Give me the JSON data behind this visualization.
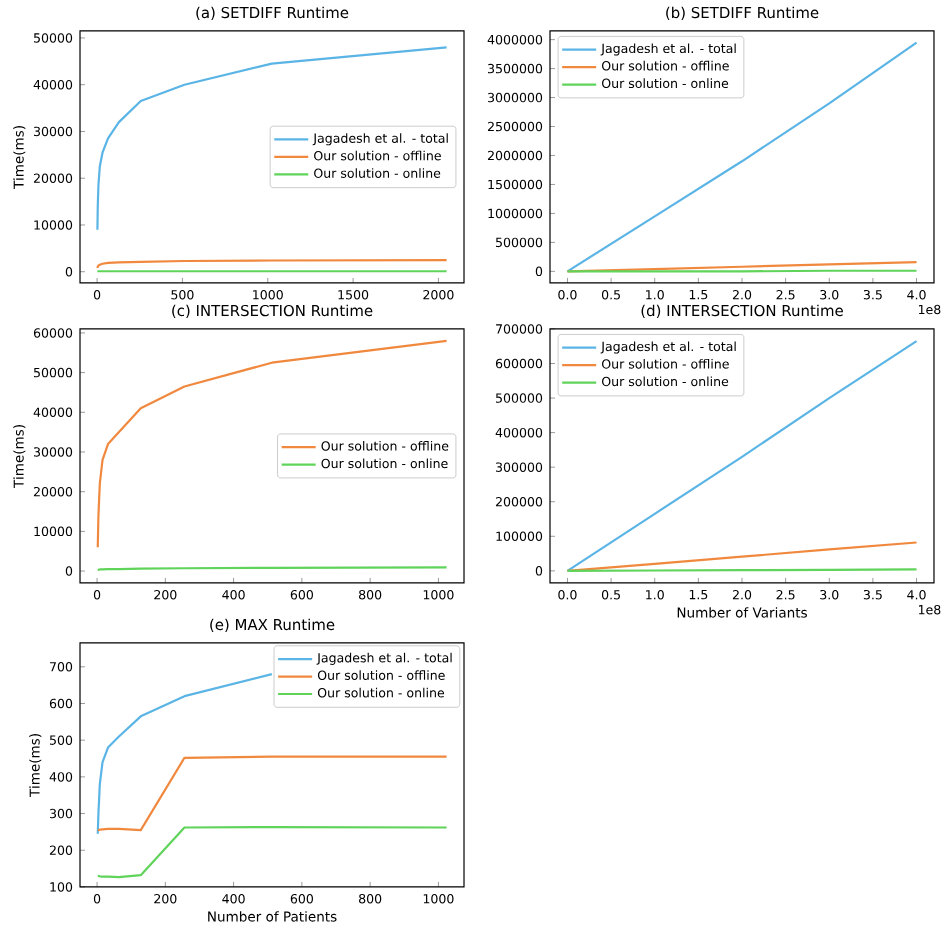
{
  "chart_data": [
    {
      "type": "line",
      "title": "(a) SETDIFF Runtime",
      "ylabel": "Time(ms)",
      "legend": "right",
      "xlim": [
        -100,
        2150
      ],
      "ylim": [
        -2400,
        51500
      ],
      "xticks": [
        0,
        500,
        1000,
        1500,
        2000
      ],
      "yticks": [
        0,
        10000,
        20000,
        30000,
        40000,
        50000
      ],
      "x": [
        2,
        4,
        8,
        16,
        32,
        64,
        128,
        256,
        512,
        1024,
        2048
      ],
      "series": [
        {
          "name": "Jagadesh et al. - total",
          "color": "#5ab4e5",
          "values": [
            9000,
            14000,
            18500,
            22500,
            25500,
            28500,
            32000,
            36500,
            40000,
            44500,
            48000
          ]
        },
        {
          "name": "Our solution - offline",
          "color": "#f0883e",
          "values": [
            800,
            1100,
            1300,
            1500,
            1700,
            1900,
            2000,
            2100,
            2300,
            2400,
            2500
          ]
        },
        {
          "name": "Our solution - online",
          "color": "#5fd35a",
          "values": [
            100,
            100,
            100,
            100,
            100,
            100,
            100,
            100,
            100,
            100,
            100
          ]
        }
      ]
    },
    {
      "type": "line",
      "title": "(b) SETDIFF Runtime",
      "legend": "top left",
      "annotations": [
        "1e8"
      ],
      "xlim": [
        -0.2,
        4.2
      ],
      "ylim": [
        -200000,
        4150000
      ],
      "xticks": [
        {
          "value": 0,
          "label": "0.0"
        },
        0.5,
        {
          "value": 1,
          "label": "1.0"
        },
        1.5,
        {
          "value": 2,
          "label": "2.0"
        },
        2.5,
        {
          "value": 3,
          "label": "3.0"
        },
        3.5,
        {
          "value": 4,
          "label": "4.0"
        }
      ],
      "yticks": [
        0,
        500000,
        1000000,
        1500000,
        2000000,
        2500000,
        3000000,
        3500000,
        4000000
      ],
      "x": [
        0,
        1,
        2,
        3,
        4
      ],
      "series": [
        {
          "name": "Jagadesh et al. - total",
          "color": "#5ab4e5",
          "values": [
            0,
            950000,
            1900000,
            2900000,
            3950000
          ]
        },
        {
          "name": "Our solution - offline",
          "color": "#f0883e",
          "values": [
            0,
            40000,
            80000,
            120000,
            160000
          ]
        },
        {
          "name": "Our solution - online",
          "color": "#5fd35a",
          "values": [
            0,
            0,
            0,
            10000,
            10000
          ]
        }
      ]
    },
    {
      "type": "line",
      "title": "(c) INTERSECTION Runtime",
      "ylabel": "Time(ms)",
      "legend": "right",
      "xlim": [
        -50,
        1075
      ],
      "ylim": [
        -3000,
        61000
      ],
      "xticks": [
        0,
        200,
        400,
        600,
        800,
        1000
      ],
      "yticks": [
        0,
        10000,
        20000,
        30000,
        40000,
        50000,
        60000
      ],
      "x": [
        2,
        4,
        8,
        16,
        32,
        64,
        128,
        256,
        512,
        1024
      ],
      "series": [
        {
          "name": "Our solution - offline",
          "color": "#f0883e",
          "values": [
            6000,
            14000,
            22000,
            28000,
            32000,
            35000,
            41000,
            46500,
            52500,
            58000
          ]
        },
        {
          "name": "Our solution - online",
          "color": "#5fd35a",
          "values": [
            300,
            300,
            400,
            400,
            500,
            500,
            600,
            700,
            800,
            900
          ]
        }
      ]
    },
    {
      "type": "line",
      "title": "(d) INTERSECTION Runtime",
      "xlabel": "Number of Variants",
      "legend": "top left",
      "annotations": [
        "1e8"
      ],
      "xlim": [
        -0.2,
        4.2
      ],
      "ylim": [
        -35000,
        700000
      ],
      "xticks": [
        {
          "value": 0,
          "label": "0.0"
        },
        0.5,
        {
          "value": 1,
          "label": "1.0"
        },
        1.5,
        {
          "value": 2,
          "label": "2.0"
        },
        2.5,
        {
          "value": 3,
          "label": "3.0"
        },
        3.5,
        {
          "value": 4,
          "label": "4.0"
        }
      ],
      "yticks": [
        0,
        100000,
        200000,
        300000,
        400000,
        500000,
        600000,
        700000
      ],
      "x": [
        0,
        1,
        2,
        3,
        4
      ],
      "series": [
        {
          "name": "Jagadesh et al. - total",
          "color": "#5ab4e5",
          "values": [
            0,
            165000,
            330000,
            500000,
            665000
          ]
        },
        {
          "name": "Our solution - offline",
          "color": "#f0883e",
          "values": [
            0,
            20000,
            41000,
            62000,
            82000
          ]
        },
        {
          "name": "Our solution - online",
          "color": "#5fd35a",
          "values": [
            0,
            1000,
            2000,
            3000,
            4000
          ]
        }
      ]
    },
    {
      "type": "line",
      "title": "(e) MAX Runtime",
      "xlabel": "Number of Patients",
      "ylabel": "Time(ms)",
      "legend": "top right",
      "xlim": [
        -50,
        1075
      ],
      "ylim": [
        100,
        765
      ],
      "xticks": [
        0,
        200,
        400,
        600,
        800,
        1000
      ],
      "yticks": [
        100,
        200,
        300,
        400,
        500,
        600,
        700
      ],
      "x": [
        2,
        4,
        8,
        16,
        32,
        64,
        128,
        256,
        512,
        1024
      ],
      "series": [
        {
          "name": "Jagadesh et al. - total",
          "color": "#5ab4e5",
          "values": [
            245,
            300,
            380,
            440,
            480,
            510,
            565,
            620,
            680,
            null
          ]
        },
        {
          "name": "Our solution - offline",
          "color": "#f0883e",
          "values": [
            255,
            255,
            256,
            257,
            258,
            258,
            255,
            452,
            455,
            455
          ]
        },
        {
          "name": "Our solution - online",
          "color": "#5fd35a",
          "values": [
            130,
            130,
            129,
            128,
            128,
            127,
            132,
            262,
            263,
            262
          ]
        }
      ]
    }
  ]
}
